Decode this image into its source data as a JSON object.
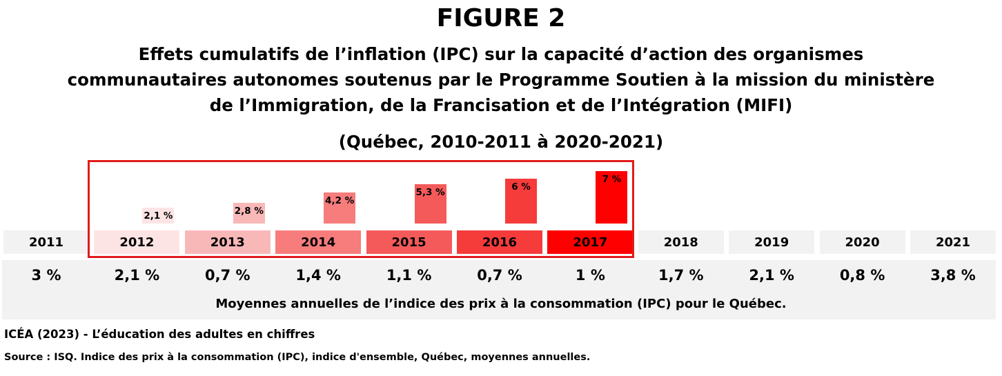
{
  "figure_label": "FIGURE 2",
  "title_lines": [
    "Effets cumulatifs de l’inflation (IPC) sur la capacité d’action des organismes",
    "communautaires autonomes soutenus par le Programme Soutien à la mission du ministère",
    "de l’Immigration, de la Francisation et de l’Intégration (MIFI)"
  ],
  "subtitle": "(Québec, 2010-2011 à 2020-2021)",
  "caption": "Moyennes annuelles de l’indice des prix à la consommation (IPC) pour le Québec.",
  "credit": "ICÉA (2023) - L’éducation des adultes en chiffres",
  "source": "Source : ISQ. Indice des prix à la consommation (IPC), indice d'ensemble, Québec, moyennes annuelles.",
  "colors": {
    "highlight_border": "#e01b1b",
    "neutral_cell": "#f2f2f2",
    "bar_shades": [
      "#fde4e4",
      "#f9b8b8",
      "#f77c7c",
      "#f55a5a",
      "#f63b3b",
      "#fe0000"
    ]
  },
  "chart_data": {
    "type": "bar",
    "years": [
      "2011",
      "2012",
      "2013",
      "2014",
      "2015",
      "2016",
      "2017",
      "2018",
      "2019",
      "2020",
      "2021"
    ],
    "annual_cpi": [
      "3 %",
      "2,1 %",
      "0,7 %",
      "1,4 %",
      "1,1 %",
      "0,7 %",
      "1 %",
      "1,7 %",
      "2,1 %",
      "0,8 %",
      "3,8 %"
    ],
    "highlighted_years": [
      "2012",
      "2013",
      "2014",
      "2015",
      "2016",
      "2017"
    ],
    "cumulative": {
      "categories": [
        "2012",
        "2013",
        "2014",
        "2015",
        "2016",
        "2017"
      ],
      "values": [
        2.1,
        2.8,
        4.2,
        5.3,
        6,
        7
      ],
      "labels": [
        "2,1 %",
        "2,8 %",
        "4,2 %",
        "5,3 %",
        "6 %",
        "7 %"
      ]
    }
  }
}
